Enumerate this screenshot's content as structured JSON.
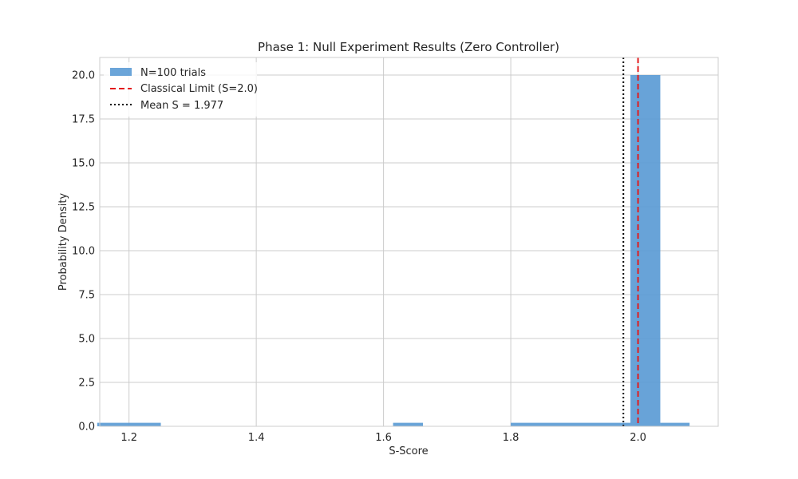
{
  "chart_data": {
    "type": "bar",
    "title": "Phase 1: Null Experiment Results (Zero Controller)",
    "xlabel": "S-Score",
    "ylabel": "Probability Density",
    "xlim": [
      1.154,
      2.126
    ],
    "ylim": [
      0,
      21.0
    ],
    "xticks": [
      "1.2",
      "1.4",
      "1.6",
      "1.8",
      "2.0"
    ],
    "yticks": [
      "0.0",
      "2.5",
      "5.0",
      "7.5",
      "10.0",
      "12.5",
      "15.0",
      "17.5",
      "20.0"
    ],
    "grid": true,
    "legend_position": "top-left",
    "histogram": {
      "name": "N=100 trials",
      "color": "#5b9bd5",
      "bins": [
        {
          "x0": 1.15,
          "x1": 1.25,
          "density": 0.2
        },
        {
          "x0": 1.615,
          "x1": 1.662,
          "density": 0.2
        },
        {
          "x0": 1.8,
          "x1": 1.988,
          "density": 0.2
        },
        {
          "x0": 1.988,
          "x1": 2.035,
          "density": 20.0
        },
        {
          "x0": 2.035,
          "x1": 2.081,
          "density": 0.2
        }
      ]
    },
    "reference_lines": [
      {
        "name": "Classical Limit (S=2.0)",
        "x": 2.0,
        "color": "#e31a1c",
        "style": "dashed"
      },
      {
        "name": "Mean S = 1.977",
        "x": 1.977,
        "color": "#000000",
        "style": "dotted"
      }
    ]
  }
}
